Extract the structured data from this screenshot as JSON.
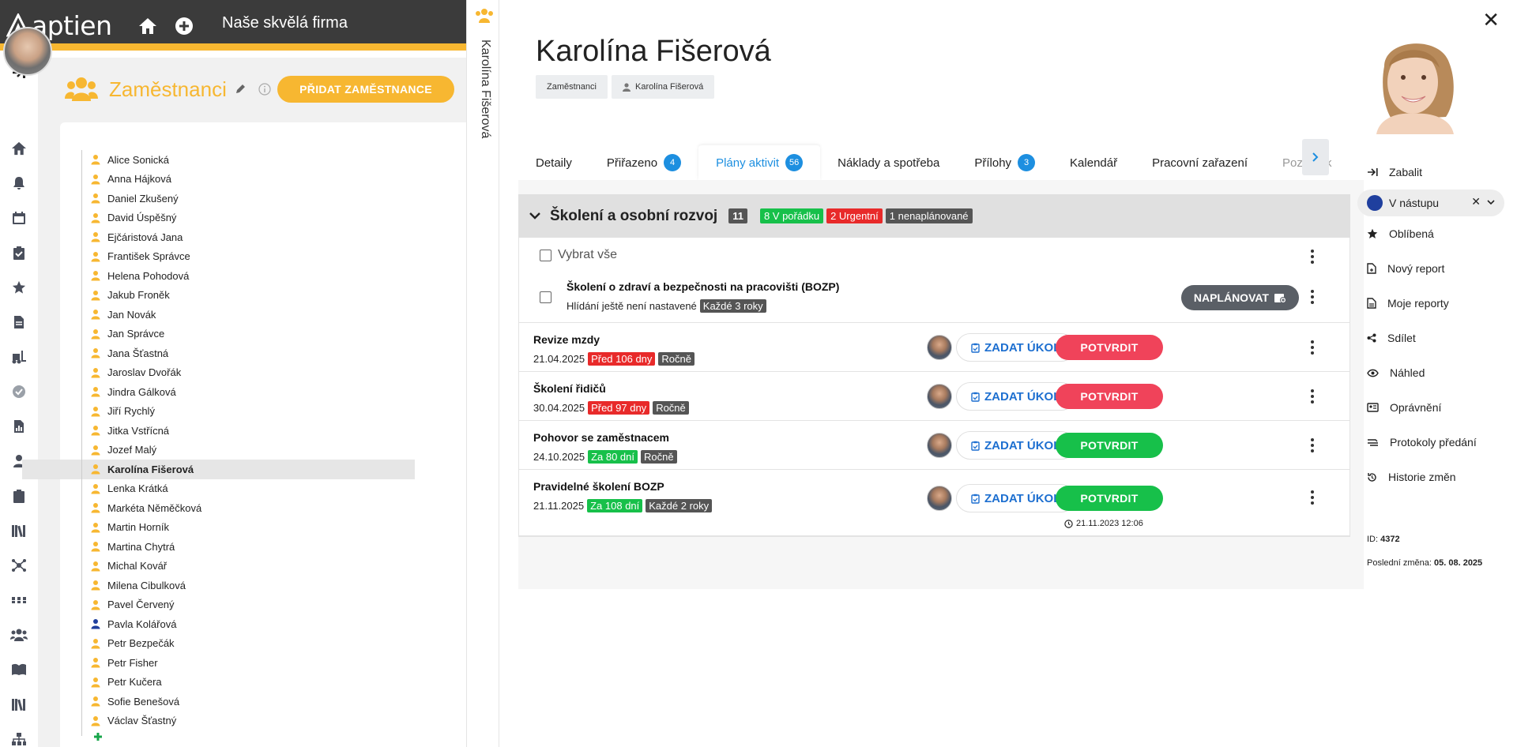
{
  "app": {
    "logo_text": "aptien",
    "company": "Naše skvělá firma"
  },
  "employees": {
    "title": "Zaměstnanci",
    "add_button": "PŘIDAT ZAMĚSTNANCE",
    "list": [
      "Alice Sonická",
      "Anna Hájková",
      "Daniel Zkušený",
      "David Úspěšný",
      "Ejčáristová Jana",
      "František Správce",
      "Helena Pohodová",
      "Jakub Froněk",
      "Jan Novák",
      "Jan Správce",
      "Jana Šťastná",
      "Jaroslav Dvořák",
      "Jindra Gálková",
      "Jiří Rychlý",
      "Jitka Vstřícná",
      "Jozef Malý",
      "Karolína Fišerová",
      "Lenka Krátká",
      "Markéta Něměčková",
      "Martin Horník",
      "Martina Chytrá",
      "Michal Kovář",
      "Milena Cibulková",
      "Pavel Červený",
      "Pavla Kolářová",
      "Petr Bezpečák",
      "Petr Fisher",
      "Petr Kučera",
      "Sofie Benešová",
      "Václav Šťastný"
    ],
    "selected": "Karolína Fišerová"
  },
  "vertical_tab": "Karolína Fišerová",
  "detail": {
    "name": "Karolína Fišerová",
    "breadcrumb": [
      "Zaměstnanci",
      "Karolína Fišerová"
    ],
    "tabs": [
      {
        "label": "Detaily",
        "badge": ""
      },
      {
        "label": "Přiřazeno",
        "badge": "4"
      },
      {
        "label": "Plány aktivit",
        "badge": "56"
      },
      {
        "label": "Náklady a spotřeba",
        "badge": ""
      },
      {
        "label": "Přílohy",
        "badge": "3"
      },
      {
        "label": "Kalendář",
        "badge": ""
      },
      {
        "label": "Pracovní zařazení",
        "badge": ""
      },
      {
        "label": "Poznámk",
        "badge": ""
      }
    ],
    "active_tab": "Plány aktivit",
    "section": {
      "title": "Školení a osobní rozvoj",
      "count": "11",
      "ok_badge": "8 V pořádku",
      "urgent_badge": "2 Urgentní",
      "unplanned_badge": "1 nenaplánované",
      "select_all": "Vybrat vše",
      "unplanned_item": {
        "title": "Školení o zdraví a bezpečnosti na pracovišti (BOZP)",
        "note": "Hlídání ještě není nastavené",
        "period": "Každé 3 roky",
        "button": "NAPLÁNOVAT"
      },
      "items": [
        {
          "title": "Revize mzdy",
          "date": "21.04.2025",
          "due": "Před 106 dny",
          "due_color": "red",
          "period": "Ročně",
          "task": "ZADAT ÚKOL",
          "confirm": "POTVRDIT",
          "confirm_color": "red",
          "last": ""
        },
        {
          "title": "Školení řidičů",
          "date": "30.04.2025",
          "due": "Před 97 dny",
          "due_color": "red",
          "period": "Ročně",
          "task": "ZADAT ÚKOL",
          "confirm": "POTVRDIT",
          "confirm_color": "red",
          "last": ""
        },
        {
          "title": "Pohovor se zaměstnacem",
          "date": "24.10.2025",
          "due": "Za 80 dní",
          "due_color": "green",
          "period": "Ročně",
          "task": "ZADAT ÚKOL",
          "confirm": "POTVRDIT",
          "confirm_color": "green",
          "last": ""
        },
        {
          "title": "Pravidelné školení BOZP",
          "date": "21.11.2025",
          "due": "Za 108 dní",
          "due_color": "green",
          "period": "Každé 2 roky",
          "task": "ZADAT ÚKOL",
          "confirm": "POTVRDIT",
          "confirm_color": "green",
          "last": "21.11.2023 12:06"
        }
      ]
    }
  },
  "actions": {
    "wrap": "Zabalit",
    "status": "V nástupu",
    "favorite": "Oblíbená",
    "new_report": "Nový report",
    "my_reports": "Moje reporty",
    "share": "Sdílet",
    "preview": "Náhled",
    "permissions": "Oprávnění",
    "handover": "Protokoly předání",
    "history": "Historie změn"
  },
  "meta": {
    "id_label": "ID:",
    "id_value": "4372",
    "last_change_label": "Poslední změna:",
    "last_change_value": "05. 08. 2025"
  },
  "colors": {
    "accent": "#f7b731",
    "blue": "#1d8fe0",
    "red": "#e82a2a",
    "green": "#17c04a",
    "topbar": "#3b3b3b"
  }
}
